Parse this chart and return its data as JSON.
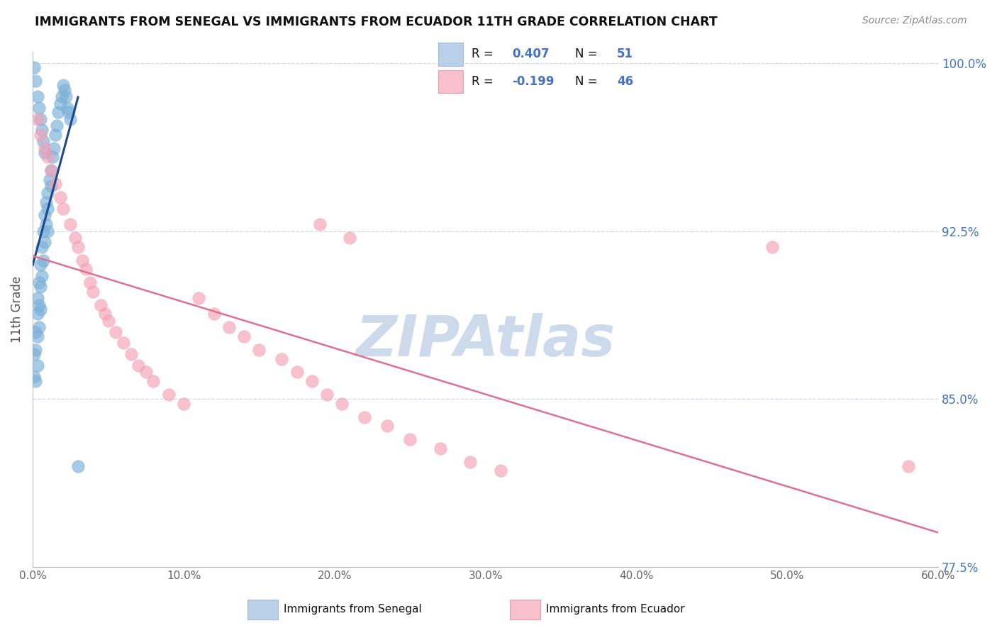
{
  "title": "IMMIGRANTS FROM SENEGAL VS IMMIGRANTS FROM ECUADOR 11TH GRADE CORRELATION CHART",
  "source": "Source: ZipAtlas.com",
  "ylabel": "11th Grade",
  "xlim": [
    0.0,
    0.6
  ],
  "ylim": [
    0.775,
    1.005
  ],
  "xtick_vals": [
    0.0,
    0.1,
    0.2,
    0.3,
    0.4,
    0.5,
    0.6
  ],
  "xticklabels": [
    "0.0%",
    "10.0%",
    "20.0%",
    "30.0%",
    "40.0%",
    "50.0%",
    "60.0%"
  ],
  "ytick_vals": [
    0.775,
    0.85,
    0.925,
    1.0
  ],
  "yticklabels": [
    "77.5%",
    "85.0%",
    "92.5%",
    "100.0%"
  ],
  "senegal_x": [
    0.001,
    0.001,
    0.002,
    0.002,
    0.002,
    0.003,
    0.003,
    0.003,
    0.003,
    0.004,
    0.004,
    0.004,
    0.005,
    0.005,
    0.005,
    0.006,
    0.006,
    0.007,
    0.007,
    0.008,
    0.008,
    0.009,
    0.009,
    0.01,
    0.01,
    0.01,
    0.011,
    0.012,
    0.012,
    0.013,
    0.014,
    0.015,
    0.016,
    0.017,
    0.018,
    0.019,
    0.02,
    0.021,
    0.022,
    0.023,
    0.024,
    0.025,
    0.001,
    0.002,
    0.003,
    0.004,
    0.005,
    0.006,
    0.007,
    0.008,
    0.03
  ],
  "senegal_y": [
    0.87,
    0.86,
    0.88,
    0.872,
    0.858,
    0.895,
    0.888,
    0.878,
    0.865,
    0.902,
    0.892,
    0.882,
    0.91,
    0.9,
    0.89,
    0.918,
    0.905,
    0.925,
    0.912,
    0.932,
    0.92,
    0.938,
    0.928,
    0.942,
    0.935,
    0.925,
    0.948,
    0.952,
    0.945,
    0.958,
    0.962,
    0.968,
    0.972,
    0.978,
    0.982,
    0.985,
    0.99,
    0.988,
    0.985,
    0.98,
    0.978,
    0.975,
    0.998,
    0.992,
    0.985,
    0.98,
    0.975,
    0.97,
    0.965,
    0.96,
    0.82
  ],
  "ecuador_x": [
    0.003,
    0.005,
    0.008,
    0.01,
    0.012,
    0.015,
    0.018,
    0.02,
    0.025,
    0.028,
    0.03,
    0.033,
    0.035,
    0.038,
    0.04,
    0.045,
    0.048,
    0.05,
    0.055,
    0.06,
    0.065,
    0.07,
    0.075,
    0.08,
    0.09,
    0.1,
    0.11,
    0.12,
    0.13,
    0.14,
    0.15,
    0.165,
    0.175,
    0.185,
    0.195,
    0.205,
    0.22,
    0.235,
    0.25,
    0.27,
    0.29,
    0.31,
    0.19,
    0.21,
    0.49,
    0.58
  ],
  "ecuador_y": [
    0.975,
    0.968,
    0.962,
    0.958,
    0.952,
    0.946,
    0.94,
    0.935,
    0.928,
    0.922,
    0.918,
    0.912,
    0.908,
    0.902,
    0.898,
    0.892,
    0.888,
    0.885,
    0.88,
    0.875,
    0.87,
    0.865,
    0.862,
    0.858,
    0.852,
    0.848,
    0.895,
    0.888,
    0.882,
    0.878,
    0.872,
    0.868,
    0.862,
    0.858,
    0.852,
    0.848,
    0.842,
    0.838,
    0.832,
    0.828,
    0.822,
    0.818,
    0.928,
    0.922,
    0.918,
    0.82
  ],
  "blue_dot_color": "#7ab0d8",
  "blue_dot_edge": "#7ab0d8",
  "pink_dot_color": "#f4a0b5",
  "pink_dot_edge": "#f4a0b5",
  "blue_line_color": "#1a4a8a",
  "pink_line_color": "#e07090",
  "grid_color": "#d0d8e8",
  "watermark_text": "ZIPAtlas",
  "watermark_color": "#ccdaec",
  "title_color": "#111111",
  "source_color": "#888888",
  "ylabel_color": "#555555",
  "yticklabel_color": "#4472c4",
  "xticklabel_color": "#666666",
  "legend_box_blue_fill": "#bad0e8",
  "legend_box_pink_fill": "#f8c0cc",
  "legend_R1": "0.407",
  "legend_N1": "51",
  "legend_R2": "-0.199",
  "legend_N2": "46",
  "legend_text_color": "#111111",
  "legend_num_color": "#4472c4",
  "bottom_legend_label1": "Immigrants from Senegal",
  "bottom_legend_label2": "Immigrants from Ecuador"
}
